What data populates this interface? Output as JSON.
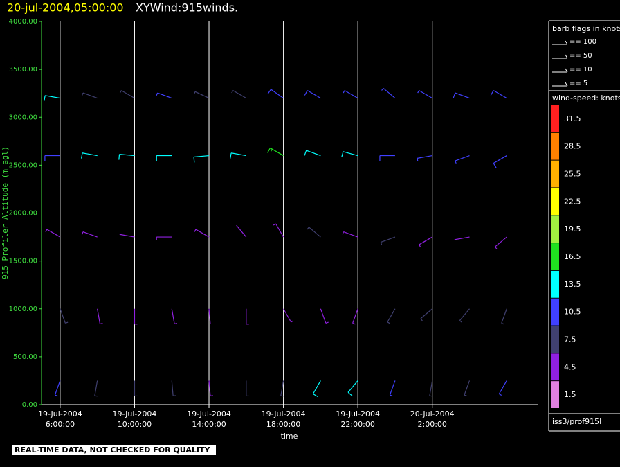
{
  "chart_data": {
    "type": "wind-barb",
    "title_date": "20-jul-2004,05:00:00",
    "title": "XYWind:915winds.",
    "y_label": "915 Profiler Altitude (m agl)",
    "x_label": "time",
    "footer": "REAL-TIME DATA, NOT CHECKED FOR QUALITY",
    "source": "iss3/prof915l",
    "xlim": [
      5,
      31.7
    ],
    "xticks": [
      {
        "value": 6,
        "date": "19-Jul-2004",
        "label": "6:00:00"
      },
      {
        "value": 10,
        "date": "19-Jul-2004",
        "label": "10:00:00"
      },
      {
        "value": 14,
        "date": "19-Jul-2004",
        "label": "14:00:00"
      },
      {
        "value": 18,
        "date": "19-Jul-2004",
        "label": "18:00:00"
      },
      {
        "value": 22,
        "date": "19-Jul-2004",
        "label": "22:00:00"
      },
      {
        "value": 26,
        "date": "20-Jul-2004",
        "label": "2:00:00"
      }
    ],
    "ylim": [
      0,
      4000
    ],
    "yticks": [
      {
        "value": 0,
        "label": "0.00"
      },
      {
        "value": 500,
        "label": "500.00"
      },
      {
        "value": 1000,
        "label": "1000.00"
      },
      {
        "value": 1500,
        "label": "1500.00"
      },
      {
        "value": 2000,
        "label": "2000.00"
      },
      {
        "value": 2500,
        "label": "2500.00"
      },
      {
        "value": 3000,
        "label": "3000.00"
      },
      {
        "value": 3500,
        "label": "3500.00"
      },
      {
        "value": 4000,
        "label": "4000.00"
      }
    ],
    "barb_legend_title": "barb flags in knots",
    "barb_legend": [
      "== 100",
      "== 50",
      "== 10",
      "== 5"
    ],
    "scale_title": "wind-speed: knots",
    "scale_bins": [
      31.5,
      28.5,
      25.5,
      22.5,
      19.5,
      16.5,
      13.5,
      10.5,
      7.5,
      4.5,
      1.5
    ],
    "scale_colors": [
      "#ff2020",
      "#ff8000",
      "#ffb000",
      "#ffff00",
      "#a0f040",
      "#20e020",
      "#00ffff",
      "#4040ff",
      "#404070",
      "#9020e0",
      "#e080e0"
    ],
    "times": [
      6,
      8,
      10,
      12,
      14,
      16,
      18,
      20,
      22,
      24,
      26,
      28,
      30
    ],
    "altitudes": [
      250,
      1000,
      1750,
      2600,
      3200
    ],
    "speed": [
      [
        9,
        8,
        6,
        6,
        5,
        6,
        7,
        12,
        14,
        9,
        6,
        7,
        9
      ],
      [
        6,
        5,
        5,
        5,
        4,
        5,
        5,
        5,
        5,
        6,
        8,
        7,
        6
      ],
      [
        5,
        5,
        4,
        5,
        5,
        4,
        5,
        6,
        5,
        6,
        5,
        4,
        5
      ],
      [
        11,
        13,
        13,
        12,
        13,
        13,
        16,
        14,
        12,
        10,
        9,
        9,
        10
      ],
      [
        12,
        8,
        7,
        9,
        8,
        8,
        10,
        10,
        9,
        9,
        9,
        10,
        11
      ]
    ],
    "direction": [
      [
        200,
        190,
        180,
        175,
        175,
        180,
        190,
        210,
        220,
        200,
        190,
        200,
        210
      ],
      [
        160,
        170,
        180,
        170,
        175,
        180,
        150,
        160,
        200,
        210,
        230,
        220,
        200
      ],
      [
        300,
        290,
        280,
        270,
        300,
        320,
        330,
        310,
        290,
        250,
        240,
        260,
        230
      ],
      [
        270,
        280,
        275,
        270,
        265,
        280,
        300,
        290,
        285,
        270,
        260,
        250,
        240
      ],
      [
        280,
        290,
        300,
        290,
        295,
        300,
        305,
        300,
        300,
        310,
        300,
        290,
        300
      ]
    ]
  }
}
